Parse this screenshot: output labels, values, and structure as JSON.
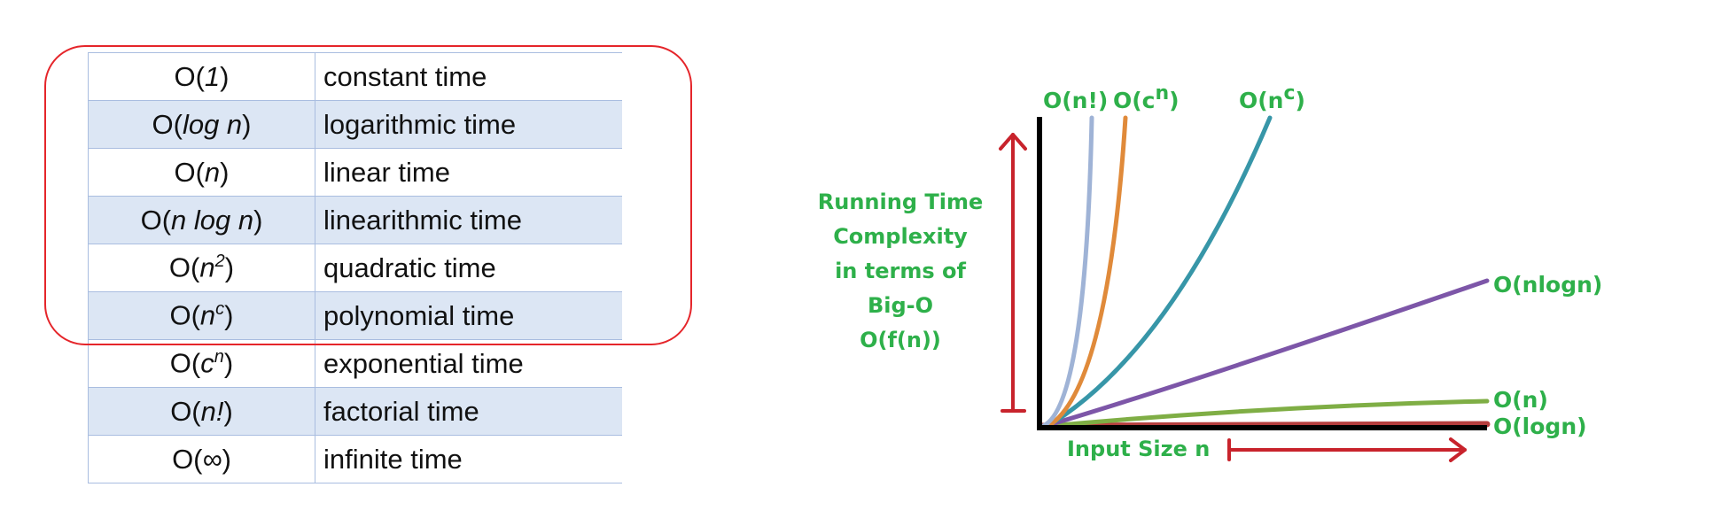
{
  "table": {
    "rows": [
      {
        "notation": {
          "pre": "O(",
          "it": "1",
          "sup": "",
          "post": ")"
        },
        "description": "constant time"
      },
      {
        "notation": {
          "pre": "O(",
          "it": "log n",
          "sup": "",
          "post": ")"
        },
        "description": "logarithmic time"
      },
      {
        "notation": {
          "pre": "O(",
          "it": "n",
          "sup": "",
          "post": ")"
        },
        "description": "linear time"
      },
      {
        "notation": {
          "pre": "O(",
          "it": "n log n",
          "sup": "",
          "post": ")"
        },
        "description": "linearithmic time"
      },
      {
        "notation": {
          "pre": "O(",
          "it": "n",
          "sup": "2",
          "post": ")"
        },
        "description": "quadratic time"
      },
      {
        "notation": {
          "pre": "O(",
          "it": "n",
          "sup": "c",
          "post": ")"
        },
        "description": "polynomial time"
      },
      {
        "notation": {
          "pre": "O(",
          "it": "c",
          "sup": "n",
          "post": ")"
        },
        "description": "exponential time"
      },
      {
        "notation": {
          "pre": "O(",
          "it": "n!",
          "sup": "",
          "post": ")"
        },
        "description": "factorial time"
      },
      {
        "notation": {
          "pre": "O(",
          "it": "∞",
          "sup": "",
          "post": ")"
        },
        "description": "infinite time"
      }
    ],
    "highlighted_rows": 6,
    "colors": {
      "row_alt": "#dce6f4",
      "border": "#a9bde0",
      "highlight": "#e5252a"
    }
  },
  "chart": {
    "ylabel": [
      "Running Time",
      "Complexity",
      "in terms of",
      "Big-O",
      "O(f(n))"
    ],
    "xlabel": "Input Size n",
    "colors": {
      "label": "#2eb04a",
      "arrow": "#c8232c",
      "axis": "#000000"
    },
    "curves": [
      {
        "key": "factorial",
        "label": {
          "base": "O(n!)",
          "sup": ""
        },
        "color": "#9fb3d6"
      },
      {
        "key": "exponential",
        "label": {
          "base": "O(c",
          "sup": "n",
          "post": ")"
        },
        "color": "#e08a3a"
      },
      {
        "key": "polynomial",
        "label": {
          "base": "O(n",
          "sup": "c",
          "post": ")"
        },
        "color": "#3796a8"
      },
      {
        "key": "nlogn",
        "label": {
          "base": "O(nlogn)",
          "sup": ""
        },
        "color": "#7d56a8"
      },
      {
        "key": "linear",
        "label": {
          "base": "O(n)",
          "sup": ""
        },
        "color": "#7fae45"
      },
      {
        "key": "log",
        "label": {
          "base": "O(logn)",
          "sup": ""
        },
        "color": "#b53e3e"
      }
    ]
  }
}
